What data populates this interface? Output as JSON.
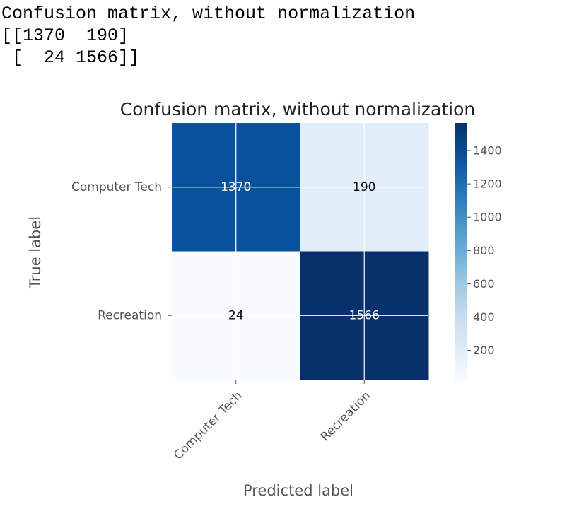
{
  "console": {
    "lines": [
      "Confusion matrix, without normalization",
      "[[1370  190]",
      " [  24 1566]]"
    ]
  },
  "chart_data": {
    "type": "heatmap",
    "title": "Confusion matrix, without normalization",
    "xlabel": "Predicted label",
    "ylabel": "True label",
    "x_categories": [
      "Computer Tech",
      "Recreation"
    ],
    "y_categories": [
      "Computer Tech",
      "Recreation"
    ],
    "values": [
      [
        1370,
        190
      ],
      [
        24,
        1566
      ]
    ],
    "colormap": "Blues",
    "colorbar": {
      "ticks": [
        200,
        400,
        600,
        800,
        1000,
        1200,
        1400
      ],
      "range": [
        24,
        1566
      ]
    },
    "grid": true,
    "colors": {
      "light": "#f7fbff",
      "dark": "#08306b",
      "text_dark": "#000000",
      "text_light": "#ffffff",
      "axis": "#444444"
    }
  }
}
